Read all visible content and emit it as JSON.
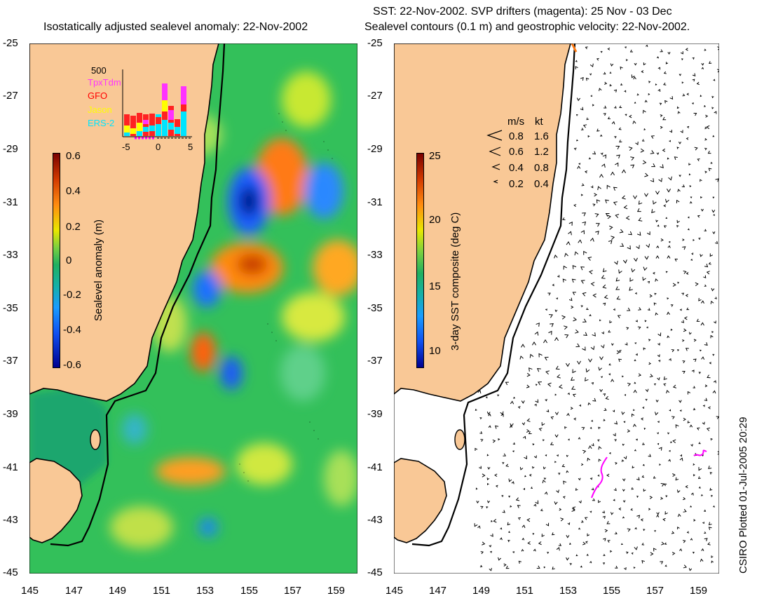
{
  "left_panel": {
    "title": "Isostatically adjusted sealevel anomaly: 22-Nov-2002",
    "colorbar_label": "Sealevel anomaly (m)",
    "colorbar_ticks": [
      "0.6",
      "0.4",
      "0.2",
      "0",
      "-0.2",
      "-0.4",
      "-0.6"
    ],
    "inset": {
      "ymax_label": "500",
      "legend": [
        {
          "name": "TpxTdm",
          "color": "#ff33ff"
        },
        {
          "name": "GFO",
          "color": "#ff0000"
        },
        {
          "name": "Jason",
          "color": "#ffff00"
        },
        {
          "name": "ERS-2",
          "color": "#00e5ff"
        }
      ],
      "xticks": [
        "-5",
        "0",
        "5"
      ]
    }
  },
  "right_panel": {
    "title_line1": "SST: 22-Nov-2002. SVP drifters (magenta): 25 Nov - 03 Dec",
    "title_line2": "Sealevel contours (0.1 m) and geostrophic velocity: 22-Nov-2002.",
    "colorbar_label": "3-day SST composite (deg C)",
    "colorbar_ticks": [
      "25",
      "20",
      "15",
      "10"
    ],
    "velocity_key": {
      "header_ms": "m/s",
      "header_kt": "kt",
      "rows": [
        {
          "ms": "0.8",
          "kt": "1.6"
        },
        {
          "ms": "0.6",
          "kt": "1.2"
        },
        {
          "ms": "0.4",
          "kt": "0.8"
        },
        {
          "ms": "0.2",
          "kt": "0.4"
        }
      ]
    }
  },
  "axes": {
    "lat_ticks": [
      "-25",
      "-27",
      "-29",
      "-31",
      "-33",
      "-35",
      "-37",
      "-39",
      "-41",
      "-43",
      "-45"
    ],
    "lon_ticks": [
      "145",
      "147",
      "149",
      "151",
      "153",
      "155",
      "157",
      "159"
    ]
  },
  "footer": "CSIRO Plotted 01-Jul-2005 20:29",
  "colors": {
    "land": "#f9c896",
    "ocean_green": "#2dbf57",
    "drifter": "#ff00ff"
  }
}
